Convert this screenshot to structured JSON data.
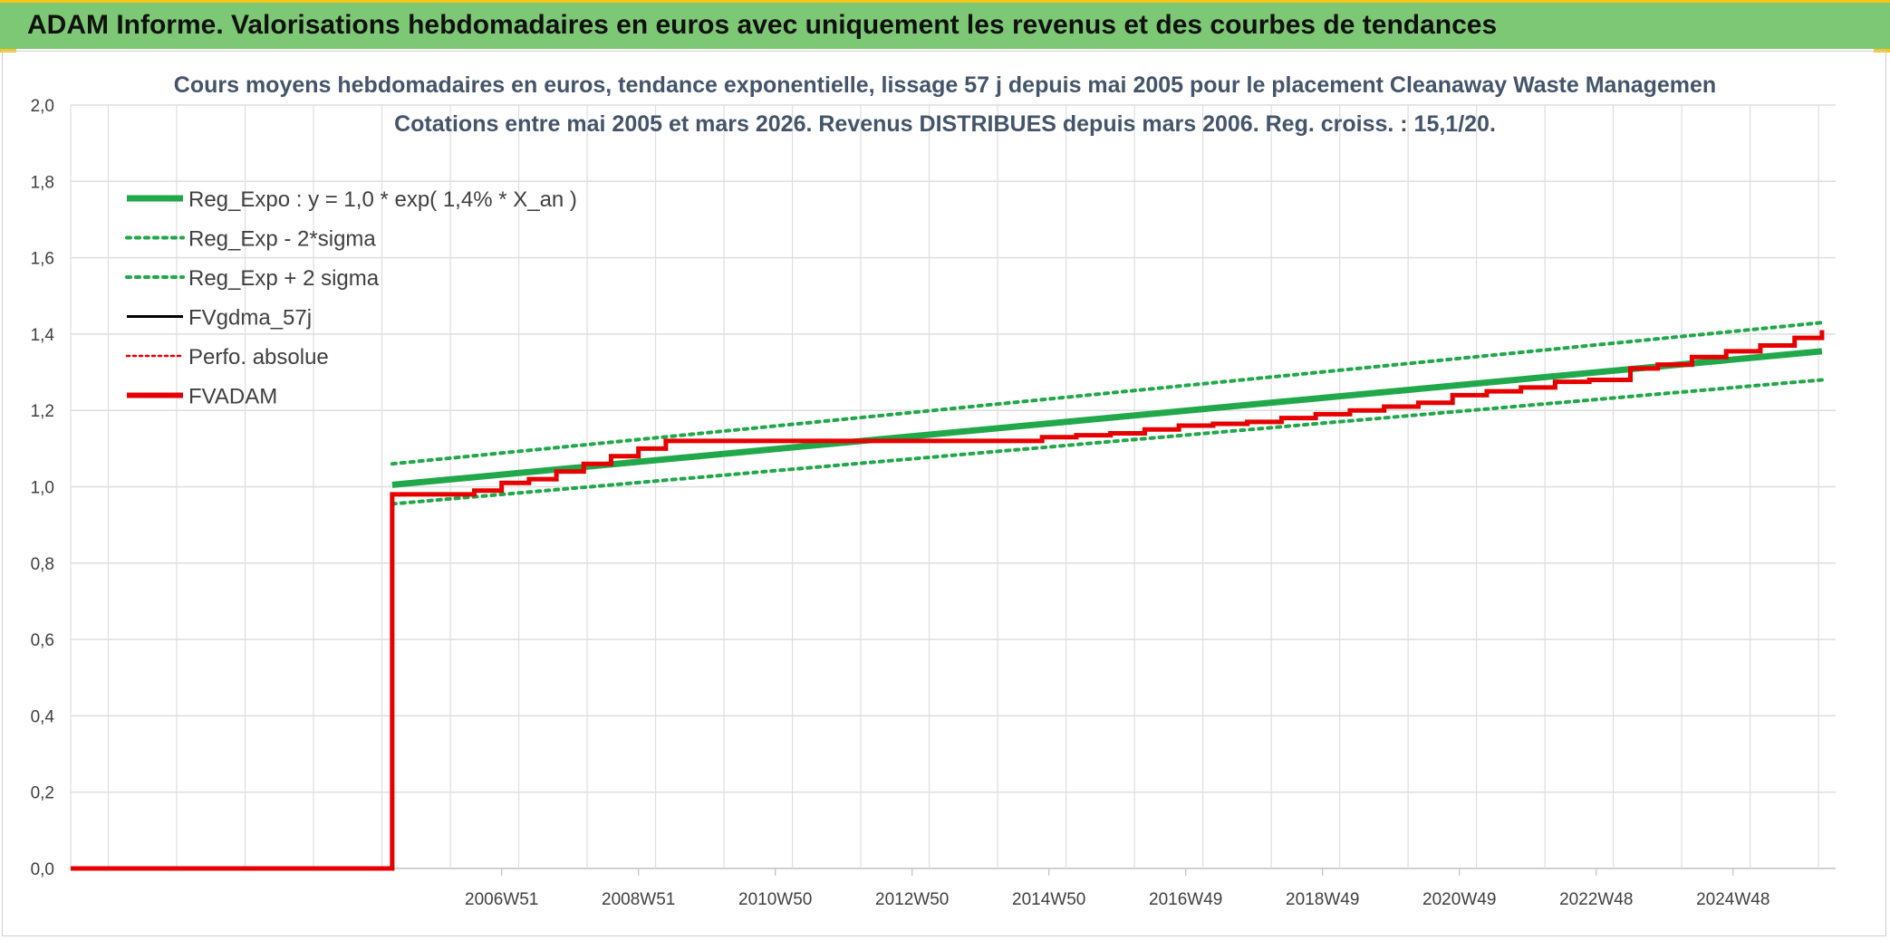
{
  "header": {
    "title": "ADAM Informe. Valorisations hebdomadaires en euros avec uniquement les revenus et des courbes de tendances"
  },
  "colors": {
    "header_bg": "#7dc874",
    "accent_yellow": "#f5c518",
    "reg_green": "#20a84a",
    "fvadam_red": "#e60000",
    "fvgdma_black": "#000000",
    "grid": "#dedede",
    "title_text": "#44546a",
    "axis_text": "#404040"
  },
  "chart_data": {
    "type": "line",
    "title_line1": "Cours moyens hebdomadaires en euros, tendance exponentielle, lissage 57 j depuis mai 2005 pour le placement Cleanaway Waste Managemen",
    "title_line2": "Cotations entre mai 2005 et mars 2026. Revenus DISTRIBUES depuis mars 2006. Reg. croiss. : 15,1/20.",
    "ylim": [
      0,
      2.0
    ],
    "yticks": [
      "0,0",
      "0,2",
      "0,4",
      "0,6",
      "0,8",
      "1,0",
      "1,2",
      "1,4",
      "1,6",
      "1,8",
      "2,0"
    ],
    "xlim": [
      -4.7,
      21.1
    ],
    "xticks": [
      {
        "label": "2006W51",
        "x": 1.6
      },
      {
        "label": "2008W51",
        "x": 3.6
      },
      {
        "label": "2010W50",
        "x": 5.6
      },
      {
        "label": "2012W50",
        "x": 7.6
      },
      {
        "label": "2014W50",
        "x": 9.6
      },
      {
        "label": "2016W49",
        "x": 11.6
      },
      {
        "label": "2018W49",
        "x": 13.6
      },
      {
        "label": "2020W49",
        "x": 15.6
      },
      {
        "label": "2022W48",
        "x": 17.6
      },
      {
        "label": "2024W48",
        "x": 19.6
      }
    ],
    "legend_position": "top-left",
    "series": [
      {
        "name": "Reg_Expo : y = 1,0 * exp( 1,4% *  X_an )",
        "style": "solid-thick",
        "color": "#20a84a",
        "x": [
          0.0,
          20.9
        ],
        "y": [
          1.005,
          1.355
        ]
      },
      {
        "name": "Reg_Exp - 2*sigma",
        "style": "dotted",
        "color": "#20a84a",
        "x": [
          0.0,
          20.9
        ],
        "y": [
          0.955,
          1.28
        ]
      },
      {
        "name": "Reg_Exp + 2 sigma",
        "style": "dotted",
        "color": "#20a84a",
        "x": [
          0.0,
          20.9
        ],
        "y": [
          1.06,
          1.43
        ]
      },
      {
        "name": "FVgdma_57j",
        "style": "solid",
        "color": "#000000",
        "x": [
          -4.7,
          -0.01,
          0.0,
          0.8,
          1.2,
          1.6,
          2.0,
          2.4,
          2.8,
          3.2,
          3.6,
          4.0,
          9.0,
          9.5,
          10.0,
          10.5,
          11.0,
          11.5,
          12.0,
          12.5,
          13.0,
          13.5,
          14.0,
          14.5,
          15.0,
          15.5,
          16.0,
          16.5,
          17.0,
          17.5,
          17.8,
          18.1,
          18.5,
          19.0,
          19.5,
          20.0,
          20.5,
          20.9
        ],
        "y": [
          0.0,
          0.0,
          0.98,
          0.98,
          0.99,
          1.01,
          1.02,
          1.04,
          1.06,
          1.08,
          1.1,
          1.12,
          1.12,
          1.13,
          1.135,
          1.14,
          1.15,
          1.16,
          1.165,
          1.17,
          1.18,
          1.19,
          1.2,
          1.21,
          1.22,
          1.24,
          1.25,
          1.26,
          1.275,
          1.28,
          1.28,
          1.31,
          1.32,
          1.34,
          1.355,
          1.37,
          1.39,
          1.41
        ]
      },
      {
        "name": "Perfo. absolue",
        "style": "dotted",
        "color": "#e60000",
        "x": [],
        "y": []
      },
      {
        "name": "FVADAM",
        "style": "step-thick",
        "color": "#e60000",
        "x": [
          -4.7,
          -0.01,
          0.0,
          0.8,
          1.2,
          1.6,
          2.0,
          2.4,
          2.8,
          3.2,
          3.6,
          4.0,
          9.0,
          9.5,
          10.0,
          10.5,
          11.0,
          11.5,
          12.0,
          12.5,
          13.0,
          13.5,
          14.0,
          14.5,
          15.0,
          15.5,
          16.0,
          16.5,
          17.0,
          17.5,
          17.8,
          18.1,
          18.5,
          19.0,
          19.5,
          20.0,
          20.5,
          20.9
        ],
        "y": [
          0.0,
          0.0,
          0.98,
          0.98,
          0.99,
          1.01,
          1.02,
          1.04,
          1.06,
          1.08,
          1.1,
          1.12,
          1.12,
          1.13,
          1.135,
          1.14,
          1.15,
          1.16,
          1.165,
          1.17,
          1.18,
          1.19,
          1.2,
          1.21,
          1.22,
          1.24,
          1.25,
          1.26,
          1.275,
          1.28,
          1.28,
          1.31,
          1.32,
          1.34,
          1.355,
          1.37,
          1.39,
          1.41
        ]
      }
    ]
  }
}
